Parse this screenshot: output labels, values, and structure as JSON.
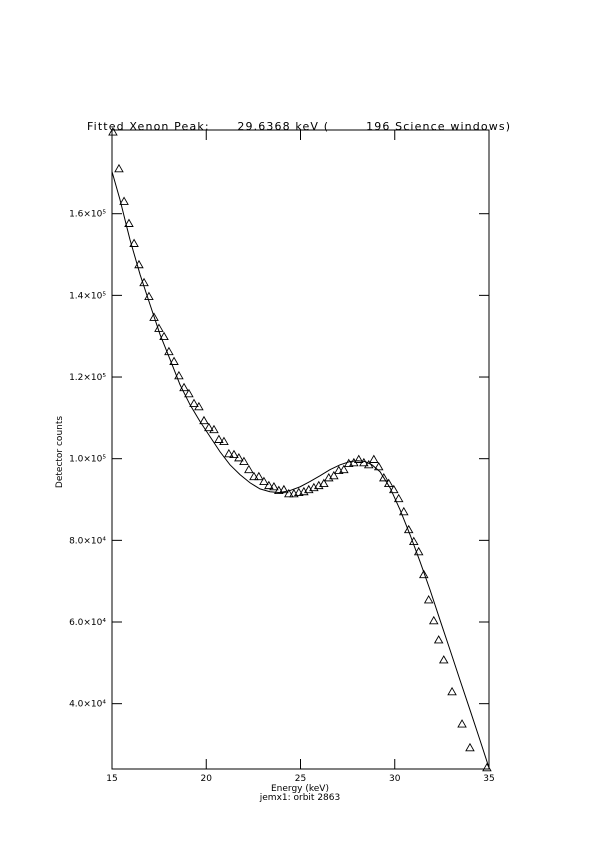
{
  "chart_data": {
    "type": "scatter",
    "title": "Fitted Xenon Peak:      29.6368 keV (        196 Science windows)",
    "x_label": "Energy (keV)",
    "subtitle": "jemx1: orbit 2863",
    "y_label": "Detector counts",
    "xlim": [
      15,
      35
    ],
    "xticks": [
      15,
      20,
      25,
      30,
      35
    ],
    "ylim": [
      24000,
      180500
    ],
    "yticks": [
      {
        "value": 40000,
        "label": "4.0×10⁴"
      },
      {
        "value": 60000,
        "label": "6.0×10⁴"
      },
      {
        "value": 80000,
        "label": "8.0×10⁴"
      },
      {
        "value": 100000,
        "label": "1.0×10⁵"
      },
      {
        "value": 120000,
        "label": "1.2×10⁵"
      },
      {
        "value": 140000,
        "label": "1.4×10⁵"
      },
      {
        "value": 160000,
        "label": "1.6×10⁵"
      }
    ],
    "series": [
      {
        "style": "triangle",
        "color": "#000000",
        "x": [
          15.05,
          15.37,
          15.64,
          15.9,
          16.17,
          16.43,
          16.7,
          16.96,
          17.23,
          17.49,
          17.76,
          18.02,
          18.29,
          18.55,
          18.82,
          19.08,
          19.35,
          19.61,
          19.88,
          20.14,
          20.41,
          20.67,
          20.94,
          21.2,
          21.47,
          21.73,
          22.0,
          22.26,
          22.53,
          22.79,
          23.06,
          23.32,
          23.59,
          23.85,
          24.12,
          24.38,
          24.65,
          24.91,
          25.18,
          25.44,
          25.71,
          25.97,
          26.24,
          26.5,
          26.77,
          27.03,
          27.3,
          27.56,
          27.83,
          28.09,
          28.36,
          28.62,
          28.89,
          29.15,
          29.42,
          29.68,
          29.95,
          30.21,
          30.48,
          30.74,
          31.01,
          31.27,
          31.54,
          31.8,
          32.07,
          32.33,
          32.6,
          33.04,
          33.57,
          33.99,
          34.89
        ],
        "values": [
          180000,
          171000,
          163000,
          157600,
          152700,
          147500,
          143100,
          139700,
          134600,
          131900,
          129900,
          126200,
          123800,
          120300,
          117400,
          115900,
          113500,
          112700,
          109300,
          107600,
          107100,
          104700,
          104200,
          101200,
          101000,
          100200,
          99300,
          97300,
          95600,
          95600,
          94400,
          93400,
          93100,
          92200,
          92400,
          91400,
          91400,
          91700,
          91900,
          92400,
          92900,
          93400,
          93900,
          95300,
          95800,
          97100,
          97300,
          98800,
          99000,
          99800,
          99000,
          98500,
          99800,
          98000,
          95300,
          93900,
          92400,
          90200,
          87000,
          82600,
          79700,
          77200,
          71600,
          65400,
          60300,
          55600,
          50700,
          42900,
          35000,
          29200,
          24300
        ]
      },
      {
        "style": "line",
        "color": "#000000",
        "x": [
          15,
          15.42,
          15.95,
          16.49,
          17.02,
          17.55,
          18.08,
          18.61,
          19.14,
          19.67,
          20.2,
          20.73,
          21.26,
          21.79,
          22.32,
          22.85,
          23.38,
          23.91,
          24.44,
          24.97,
          25.5,
          26.03,
          26.56,
          27.1,
          27.63,
          28.05,
          28.42,
          28.79,
          29.22,
          29.75,
          30.28,
          30.81,
          31.34,
          31.87,
          32.4,
          32.93,
          33.46,
          33.99,
          34.52,
          35
        ],
        "values": [
          170300,
          163500,
          153700,
          145100,
          137700,
          130400,
          124300,
          118100,
          113200,
          109100,
          105400,
          101700,
          98500,
          96100,
          94100,
          92600,
          91900,
          91700,
          92200,
          93100,
          94400,
          95800,
          97300,
          98500,
          99300,
          99500,
          99300,
          98500,
          96800,
          92900,
          87500,
          81400,
          74800,
          67900,
          60500,
          53200,
          45800,
          38500,
          31100,
          24300
        ]
      }
    ]
  }
}
